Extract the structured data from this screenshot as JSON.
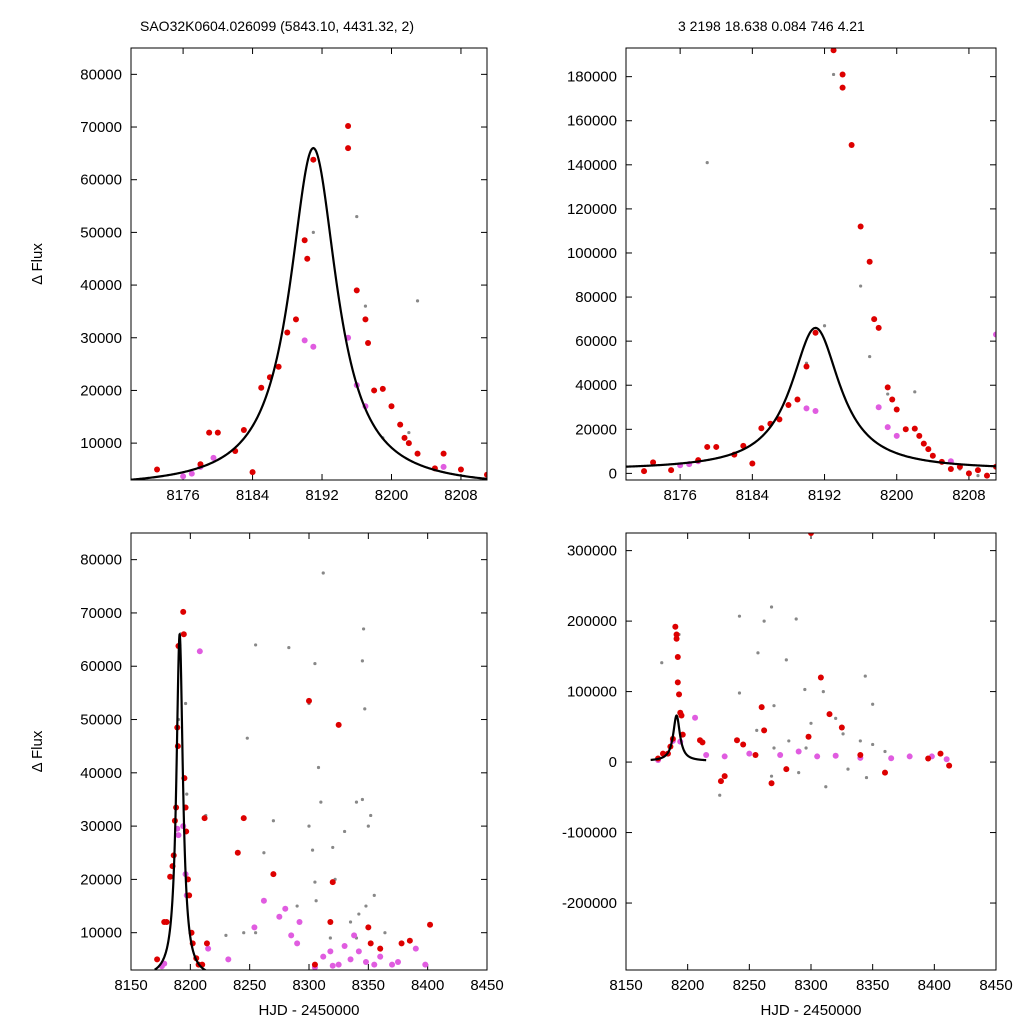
{
  "header": {
    "left_title": "SAO32K0604.026099 (5843.10, 4431.32,    2)",
    "right_title": "3   2198   18.638   0.084   746   4.21"
  },
  "colors": {
    "detection": "#dd0000",
    "magenta": "#e05ce0",
    "gray": "#888888",
    "model": "#000000"
  },
  "chart_data": [
    {
      "type": "scatter",
      "xlim": [
        8170,
        8211
      ],
      "ylim": [
        3000,
        85000
      ],
      "xticks": [
        8176,
        8184,
        8192,
        8200,
        8208
      ],
      "yticks": [
        10000,
        20000,
        30000,
        40000,
        50000,
        60000,
        70000,
        80000
      ],
      "ylabel": "Δ Flux",
      "xlabel": "",
      "model": {
        "peak_x": 8191,
        "peak_y": 66000,
        "base": 1500,
        "width": 3.3
      },
      "red": [
        [
          8173,
          5000
        ],
        [
          8178,
          6000
        ],
        [
          8179,
          12000
        ],
        [
          8180,
          12000
        ],
        [
          8182,
          8500
        ],
        [
          8183,
          12500
        ],
        [
          8184,
          4500
        ],
        [
          8185,
          20500
        ],
        [
          8186,
          22500
        ],
        [
          8187,
          24500
        ],
        [
          8188,
          31000
        ],
        [
          8189,
          33500
        ],
        [
          8190,
          48500
        ],
        [
          8190.3,
          45000
        ],
        [
          8191,
          63800
        ],
        [
          8195,
          70200
        ],
        [
          8195,
          66000
        ],
        [
          8196,
          39000
        ],
        [
          8197,
          33500
        ],
        [
          8197.3,
          29000
        ],
        [
          8198,
          20000
        ],
        [
          8199,
          20300
        ],
        [
          8200,
          17000
        ],
        [
          8201,
          13500
        ],
        [
          8201.5,
          11000
        ],
        [
          8202,
          10000
        ],
        [
          8203,
          8000
        ],
        [
          8205,
          5200
        ],
        [
          8206,
          8000
        ],
        [
          8208,
          5000
        ],
        [
          8211,
          4000
        ]
      ],
      "magenta": [
        [
          8176,
          3700
        ],
        [
          8177,
          4200
        ],
        [
          8178,
          5500
        ],
        [
          8179.5,
          7200
        ],
        [
          8190,
          29500
        ],
        [
          8191,
          28300
        ],
        [
          8195,
          30000
        ],
        [
          8196,
          21000
        ],
        [
          8197,
          17000
        ],
        [
          8206,
          5500
        ]
      ],
      "gray": [
        [
          8191,
          50000
        ],
        [
          8196,
          53000
        ],
        [
          8197,
          36000
        ],
        [
          8203,
          37000
        ],
        [
          8199,
          11000
        ],
        [
          8202,
          12000
        ]
      ]
    },
    {
      "type": "scatter",
      "xlim": [
        8170,
        8211
      ],
      "ylim": [
        -3000,
        193000
      ],
      "xticks": [
        8176,
        8184,
        8192,
        8200,
        8208
      ],
      "yticks": [
        0,
        20000,
        40000,
        60000,
        80000,
        100000,
        120000,
        140000,
        160000,
        180000
      ],
      "ylabel": "",
      "xlabel": "",
      "model": {
        "peak_x": 8191,
        "peak_y": 66000,
        "base": 1500,
        "width": 3.3
      },
      "red": [
        [
          8172,
          1000
        ],
        [
          8173,
          5000
        ],
        [
          8175,
          1500
        ],
        [
          8178,
          6000
        ],
        [
          8179,
          12000
        ],
        [
          8180,
          12000
        ],
        [
          8182,
          8500
        ],
        [
          8183,
          12500
        ],
        [
          8184,
          4500
        ],
        [
          8185,
          20500
        ],
        [
          8186,
          22500
        ],
        [
          8187,
          24500
        ],
        [
          8188,
          31000
        ],
        [
          8189,
          33500
        ],
        [
          8190,
          48500
        ],
        [
          8191,
          63800
        ],
        [
          8193,
          192000
        ],
        [
          8194,
          175000
        ],
        [
          8194,
          181000
        ],
        [
          8195,
          149000
        ],
        [
          8196,
          112000
        ],
        [
          8197,
          96000
        ],
        [
          8197.5,
          70000
        ],
        [
          8198,
          66000
        ],
        [
          8199,
          39000
        ],
        [
          8199.5,
          33500
        ],
        [
          8200,
          29000
        ],
        [
          8201,
          20000
        ],
        [
          8202,
          20300
        ],
        [
          8202.5,
          17000
        ],
        [
          8203,
          13500
        ],
        [
          8203.5,
          11000
        ],
        [
          8204,
          8000
        ],
        [
          8205,
          5200
        ],
        [
          8206,
          2000
        ],
        [
          8207,
          3000
        ],
        [
          8208,
          0
        ],
        [
          8209,
          1500
        ],
        [
          8210,
          -1000
        ],
        [
          8211,
          3000
        ]
      ],
      "magenta": [
        [
          8176,
          3700
        ],
        [
          8177,
          4200
        ],
        [
          8178,
          5500
        ],
        [
          8190,
          29500
        ],
        [
          8191,
          28300
        ],
        [
          8198,
          30000
        ],
        [
          8199,
          21000
        ],
        [
          8200,
          17000
        ],
        [
          8206,
          5500
        ],
        [
          8211,
          63000
        ]
      ],
      "gray": [
        [
          8190,
          50000
        ],
        [
          8192,
          67000
        ],
        [
          8193,
          181000
        ],
        [
          8196,
          85000
        ],
        [
          8197,
          53000
        ],
        [
          8199,
          36000
        ],
        [
          8202,
          37000
        ],
        [
          8179,
          141000
        ],
        [
          8207,
          2000
        ],
        [
          8209,
          -1000
        ]
      ]
    },
    {
      "type": "scatter",
      "xlim": [
        8150,
        8450
      ],
      "ylim": [
        3000,
        85000
      ],
      "xticks": [
        8150,
        8200,
        8250,
        8300,
        8350,
        8400,
        8450
      ],
      "yticks": [
        10000,
        20000,
        30000,
        40000,
        50000,
        60000,
        70000,
        80000
      ],
      "ylabel": "Δ Flux",
      "xlabel": "HJD - 2450000",
      "model": {
        "peak_x": 8191,
        "peak_y": 66000,
        "base": 1500,
        "width": 3.3
      },
      "red": [
        [
          8172,
          5000
        ],
        [
          8178,
          12000
        ],
        [
          8180,
          12000
        ],
        [
          8183,
          20500
        ],
        [
          8185,
          22500
        ],
        [
          8186,
          24500
        ],
        [
          8187,
          31000
        ],
        [
          8188,
          33500
        ],
        [
          8189,
          48500
        ],
        [
          8189.5,
          45000
        ],
        [
          8190,
          63800
        ],
        [
          8194,
          70200
        ],
        [
          8194.5,
          66000
        ],
        [
          8195,
          39000
        ],
        [
          8196,
          33500
        ],
        [
          8196.5,
          29000
        ],
        [
          8198,
          20000
        ],
        [
          8199,
          17000
        ],
        [
          8201,
          10000
        ],
        [
          8202,
          8000
        ],
        [
          8205,
          5200
        ],
        [
          8207,
          4000
        ],
        [
          8210,
          4000
        ],
        [
          8212,
          31500
        ],
        [
          8214,
          8000
        ],
        [
          8245,
          31500
        ],
        [
          8240,
          25000
        ],
        [
          8270,
          21000
        ],
        [
          8300,
          53500
        ],
        [
          8325,
          49000
        ],
        [
          8320,
          19500
        ],
        [
          8318,
          12000
        ],
        [
          8350,
          11000
        ],
        [
          8352,
          8000
        ],
        [
          8378,
          8000
        ],
        [
          8385,
          8500
        ],
        [
          8402,
          11500
        ],
        [
          8305,
          4000
        ],
        [
          8360,
          7000
        ]
      ],
      "magenta": [
        [
          8176,
          3700
        ],
        [
          8178,
          4200
        ],
        [
          8189,
          29500
        ],
        [
          8190,
          28300
        ],
        [
          8194,
          30000
        ],
        [
          8196,
          21000
        ],
        [
          8197,
          17000
        ],
        [
          8208,
          62800
        ],
        [
          8215,
          7000
        ],
        [
          8232,
          5000
        ],
        [
          8254,
          11000
        ],
        [
          8262,
          16000
        ],
        [
          8275,
          13000
        ],
        [
          8280,
          14500
        ],
        [
          8285,
          9500
        ],
        [
          8290,
          8000
        ],
        [
          8292,
          12000
        ],
        [
          8305,
          3500
        ],
        [
          8312,
          5500
        ],
        [
          8318,
          6500
        ],
        [
          8320,
          3800
        ],
        [
          8325,
          4000
        ],
        [
          8330,
          7500
        ],
        [
          8335,
          5000
        ],
        [
          8338,
          9500
        ],
        [
          8342,
          6500
        ],
        [
          8348,
          4500
        ],
        [
          8355,
          4000
        ],
        [
          8360,
          5500
        ],
        [
          8370,
          4000
        ],
        [
          8375,
          4500
        ],
        [
          8390,
          7000
        ],
        [
          8398,
          4000
        ]
      ],
      "gray": [
        [
          8190,
          50000
        ],
        [
          8196,
          53000
        ],
        [
          8197,
          36000
        ],
        [
          8213,
          32000
        ],
        [
          8255,
          64000
        ],
        [
          8248,
          46500
        ],
        [
          8283,
          63500
        ],
        [
          8305,
          60500
        ],
        [
          8312,
          77500
        ],
        [
          8345,
          61000
        ],
        [
          8346,
          67000
        ],
        [
          8347,
          52000
        ],
        [
          8300,
          53000
        ],
        [
          8308,
          41000
        ],
        [
          8310,
          34500
        ],
        [
          8300,
          30000
        ],
        [
          8303,
          25500
        ],
        [
          8305,
          19500
        ],
        [
          8306,
          16000
        ],
        [
          8340,
          34500
        ],
        [
          8345,
          35000
        ],
        [
          8330,
          29000
        ],
        [
          8320,
          26000
        ],
        [
          8350,
          30000
        ],
        [
          8352,
          32000
        ],
        [
          8348,
          15000
        ],
        [
          8342,
          13500
        ],
        [
          8270,
          31000
        ],
        [
          8262,
          25000
        ],
        [
          8255,
          10000
        ],
        [
          8290,
          15000
        ],
        [
          8245,
          10000
        ],
        [
          8230,
          9500
        ],
        [
          8335,
          12000
        ],
        [
          8355,
          17000
        ],
        [
          8340,
          9000
        ],
        [
          8318,
          9000
        ],
        [
          8322,
          20000
        ],
        [
          8364,
          10000
        ]
      ]
    },
    {
      "type": "scatter",
      "xlim": [
        8150,
        8450
      ],
      "ylim": [
        -295000,
        325000
      ],
      "xticks": [
        8150,
        8200,
        8250,
        8300,
        8350,
        8400,
        8450
      ],
      "yticks": [
        -200000,
        -100000,
        0,
        100000,
        200000,
        300000
      ],
      "ylabel": "",
      "xlabel": "HJD - 2450000",
      "model": {
        "peak_x": 8191,
        "peak_y": 66000,
        "base": 1500,
        "width": 3.3
      },
      "red": [
        [
          8190,
          192000
        ],
        [
          8191,
          181000
        ],
        [
          8191,
          175000
        ],
        [
          8192,
          149000
        ],
        [
          8192,
          113000
        ],
        [
          8193,
          96000
        ],
        [
          8194,
          70000
        ],
        [
          8195,
          66000
        ],
        [
          8196,
          39000
        ],
        [
          8188,
          33000
        ],
        [
          8186,
          22000
        ],
        [
          8184,
          12000
        ],
        [
          8180,
          12000
        ],
        [
          8176,
          5000
        ],
        [
          8210,
          31000
        ],
        [
          8212,
          28000
        ],
        [
          8227,
          -27000
        ],
        [
          8240,
          31000
        ],
        [
          8245,
          25000
        ],
        [
          8262,
          45000
        ],
        [
          8268,
          -30000
        ],
        [
          8300,
          325000
        ],
        [
          8308,
          120000
        ],
        [
          8315,
          68000
        ],
        [
          8325,
          49000
        ],
        [
          8298,
          36000
        ],
        [
          8260,
          78000
        ],
        [
          8230,
          -20000
        ],
        [
          8255,
          10000
        ],
        [
          8280,
          -10000
        ],
        [
          8340,
          10000
        ],
        [
          8360,
          -15000
        ],
        [
          8395,
          5000
        ],
        [
          8405,
          12000
        ],
        [
          8412,
          -5000
        ]
      ],
      "magenta": [
        [
          8176,
          3000
        ],
        [
          8188,
          30000
        ],
        [
          8194,
          29000
        ],
        [
          8206,
          62800
        ],
        [
          8215,
          10000
        ],
        [
          8230,
          8000
        ],
        [
          8250,
          12000
        ],
        [
          8275,
          10000
        ],
        [
          8290,
          15000
        ],
        [
          8305,
          8000
        ],
        [
          8320,
          9000
        ],
        [
          8340,
          6000
        ],
        [
          8365,
          5500
        ],
        [
          8380,
          8000
        ],
        [
          8398,
          8000
        ],
        [
          8410,
          4000
        ]
      ],
      "gray": [
        [
          8179,
          141000
        ],
        [
          8193,
          181000
        ],
        [
          8242,
          207000
        ],
        [
          8268,
          220000
        ],
        [
          8262,
          200000
        ],
        [
          8288,
          203000
        ],
        [
          8257,
          155000
        ],
        [
          8280,
          145000
        ],
        [
          8295,
          103000
        ],
        [
          8310,
          100000
        ],
        [
          8344,
          122000
        ],
        [
          8350,
          82000
        ],
        [
          8242,
          98000
        ],
        [
          8256,
          45000
        ],
        [
          8270,
          80000
        ],
        [
          8300,
          55000
        ],
        [
          8320,
          62000
        ],
        [
          8326,
          40000
        ],
        [
          8340,
          30000
        ],
        [
          8350,
          25000
        ],
        [
          8360,
          15000
        ],
        [
          8226,
          -47000
        ],
        [
          8312,
          -35000
        ],
        [
          8268,
          -20000
        ],
        [
          8290,
          -15000
        ],
        [
          8330,
          -10000
        ],
        [
          8345,
          -22000
        ],
        [
          8270,
          20000
        ],
        [
          8282,
          30000
        ],
        [
          8296,
          20000
        ]
      ]
    }
  ]
}
